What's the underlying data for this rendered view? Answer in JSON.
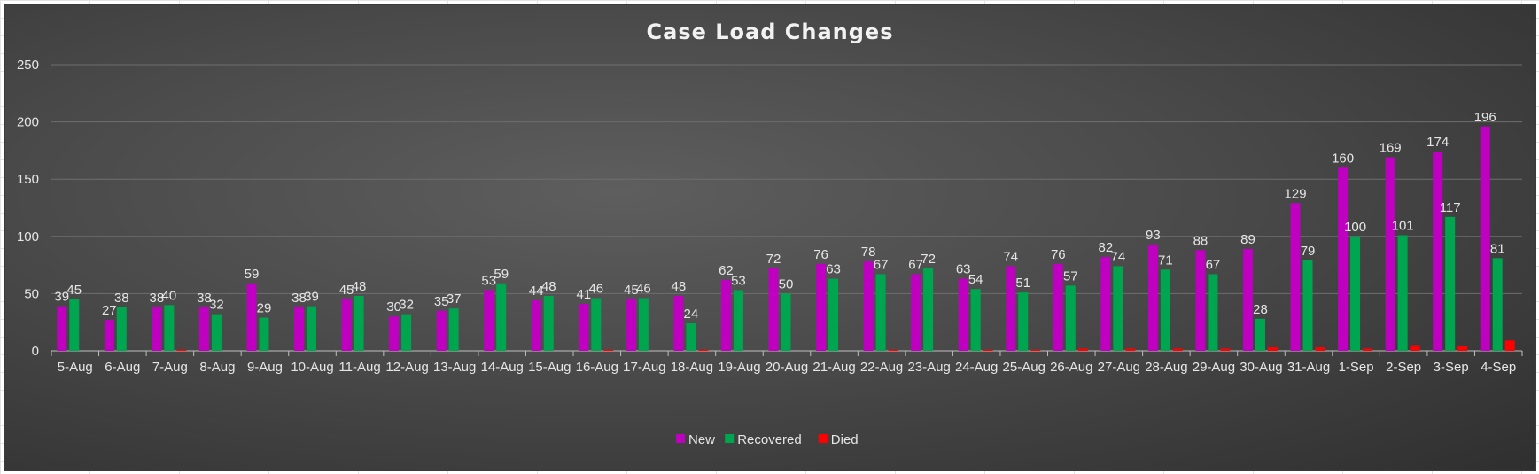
{
  "chart_data": {
    "type": "bar",
    "title": "Case Load Changes",
    "xlabel": "",
    "ylabel": "",
    "ylim": [
      0,
      250
    ],
    "yticks": [
      0,
      50,
      100,
      150,
      200,
      250
    ],
    "grid": true,
    "legend_position": "bottom",
    "categories": [
      "5-Aug",
      "6-Aug",
      "7-Aug",
      "8-Aug",
      "9-Aug",
      "10-Aug",
      "11-Aug",
      "12-Aug",
      "13-Aug",
      "14-Aug",
      "15-Aug",
      "16-Aug",
      "17-Aug",
      "18-Aug",
      "19-Aug",
      "20-Aug",
      "21-Aug",
      "22-Aug",
      "23-Aug",
      "24-Aug",
      "25-Aug",
      "26-Aug",
      "27-Aug",
      "28-Aug",
      "29-Aug",
      "30-Aug",
      "31-Aug",
      "1-Sep",
      "2-Sep",
      "3-Sep",
      "4-Sep"
    ],
    "series": [
      {
        "name": "New",
        "color": "#c000c0",
        "values": [
          39,
          27,
          38,
          38,
          59,
          38,
          45,
          30,
          35,
          53,
          44,
          41,
          45,
          48,
          62,
          72,
          76,
          78,
          67,
          63,
          74,
          76,
          82,
          93,
          88,
          89,
          129,
          160,
          169,
          174,
          196
        ]
      },
      {
        "name": "Recovered",
        "color": "#00a550",
        "values": [
          45,
          38,
          40,
          32,
          29,
          39,
          48,
          32,
          37,
          59,
          48,
          46,
          46,
          24,
          53,
          50,
          63,
          67,
          72,
          54,
          51,
          57,
          74,
          71,
          67,
          28,
          79,
          100,
          101,
          117,
          81
        ]
      },
      {
        "name": "Died",
        "color": "#ff0000",
        "values": [
          0,
          0,
          1,
          0,
          0,
          0,
          0,
          0,
          0,
          0,
          0,
          1,
          0,
          1,
          0,
          0,
          0,
          1,
          0,
          1,
          1,
          2,
          2,
          2,
          2,
          3,
          3,
          2,
          5,
          4,
          9
        ]
      }
    ],
    "labeled_series": [
      "New",
      "Recovered"
    ]
  }
}
